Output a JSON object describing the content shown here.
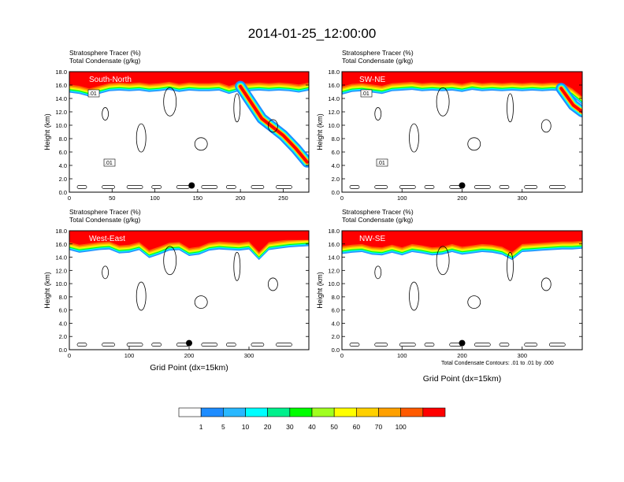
{
  "title": "2014-01-25_12:00:00",
  "footnote": "Total Condensate Contours: .01 to .01 by .000",
  "colorbar": {
    "labels": [
      "1",
      "5",
      "10",
      "20",
      "30",
      "40",
      "50",
      "60",
      "70",
      "100"
    ],
    "colors": [
      "#ffffff",
      "#1e8cff",
      "#29b8ff",
      "#00ffff",
      "#00f08c",
      "#00ff00",
      "#a0ff20",
      "#ffff00",
      "#ffd000",
      "#ffa000",
      "#ff5a00",
      "#ff0000"
    ]
  },
  "chart_data": [
    {
      "type": "heatmap",
      "panel": "top-left",
      "header": [
        "Stratosphere Tracer   (%)",
        "Total Condensate   (g/kg)"
      ],
      "label": "South-North",
      "xlabel": "",
      "ylabel": "Height (km)",
      "xlim": [
        0,
        280
      ],
      "ylim": [
        0,
        18
      ],
      "xticks": [
        "0",
        "50",
        "100",
        "150",
        "200",
        "250"
      ],
      "yticks": [
        "0.0",
        "2.0",
        "4.0",
        "6.0",
        "8.0",
        "10.0",
        "12.0",
        "14.0",
        "16.0",
        "18.0"
      ],
      "tracer_base_km": [
        14.8,
        14.6,
        14.2,
        14.6,
        15.0,
        15.1,
        15.0,
        15.1,
        14.9,
        15.0,
        15.2,
        14.9,
        15.1,
        15.0,
        15.0,
        15.1,
        14.6,
        15.0,
        15.0,
        15.1,
        15.0,
        15.1,
        15.0,
        14.8,
        15.1
      ],
      "intrusion": {
        "x": [
          200,
          225,
          250,
          265,
          278
        ],
        "y": [
          15.8,
          11.0,
          8.5,
          6.5,
          4.5
        ]
      },
      "contour_labels": [
        ".01",
        ".01"
      ],
      "marker": {
        "x": 143,
        "y": 1.0
      }
    },
    {
      "type": "heatmap",
      "panel": "top-right",
      "header": [
        "Stratosphere Tracer   (%)",
        "Total Condensate   (g/kg)"
      ],
      "label": "SW-NE",
      "xlabel": "",
      "ylabel": "Height (km)",
      "xlim": [
        0,
        400
      ],
      "ylim": [
        0,
        18
      ],
      "xticks": [
        "0",
        "100",
        "200",
        "300"
      ],
      "yticks": [
        "0.0",
        "2.0",
        "4.0",
        "6.0",
        "8.0",
        "10.0",
        "12.0",
        "14.0",
        "16.0",
        "18.0"
      ],
      "tracer_base_km": [
        14.5,
        14.9,
        15.0,
        14.8,
        14.6,
        15.0,
        15.1,
        15.2,
        15.0,
        15.1,
        15.0,
        15.1,
        14.9,
        15.2,
        15.0,
        15.1,
        15.0,
        15.1,
        15.0,
        15.1,
        15.0,
        15.1,
        15.0,
        14.2,
        13.0
      ],
      "intrusion": {
        "x": [
          365,
          385,
          400
        ],
        "y": [
          15.5,
          13.0,
          12.0
        ]
      },
      "contour_labels": [
        ".01",
        ".01"
      ],
      "marker": {
        "x": 200,
        "y": 1.0
      }
    },
    {
      "type": "heatmap",
      "panel": "bottom-left",
      "header": [
        "Stratosphere Tracer   (%)",
        "Total Condensate   (g/kg)"
      ],
      "label": "West-East",
      "xlabel": "Grid Point (dx=15km)",
      "ylabel": "Height (km)",
      "xlim": [
        0,
        400
      ],
      "ylim": [
        0,
        18
      ],
      "xticks": [
        "0",
        "100",
        "200",
        "300"
      ],
      "yticks": [
        "0.0",
        "2.0",
        "4.0",
        "6.0",
        "8.0",
        "10.0",
        "12.0",
        "14.0",
        "16.0",
        "18.0"
      ],
      "tracer_base_km": [
        15.0,
        14.6,
        14.8,
        15.0,
        15.1,
        14.5,
        14.6,
        15.0,
        13.8,
        14.3,
        14.9,
        15.0,
        14.1,
        14.3,
        14.9,
        15.1,
        15.0,
        14.9,
        15.1,
        13.5,
        15.0,
        15.2,
        15.4,
        15.5,
        15.6
      ],
      "contour_labels": [],
      "marker": {
        "x": 200,
        "y": 1.0
      }
    },
    {
      "type": "heatmap",
      "panel": "bottom-right",
      "header": [
        "Stratosphere Tracer   (%)",
        "Total Condensate   (g/kg)"
      ],
      "label": "NW-SE",
      "xlabel": "Grid Point (dx=15km)",
      "ylabel": "Height (km)",
      "xlim": [
        0,
        400
      ],
      "ylim": [
        0,
        18
      ],
      "xticks": [
        "0",
        "100",
        "200",
        "300"
      ],
      "yticks": [
        "0.0",
        "2.0",
        "4.0",
        "6.0",
        "8.0",
        "10.0",
        "12.0",
        "14.0",
        "16.0",
        "18.0"
      ],
      "tracer_base_km": [
        14.4,
        14.6,
        14.7,
        14.3,
        14.2,
        14.6,
        14.2,
        14.7,
        14.5,
        14.2,
        14.3,
        14.7,
        14.3,
        14.5,
        14.7,
        14.6,
        14.3,
        13.5,
        14.7,
        14.8,
        14.9,
        15.0,
        15.1,
        15.1,
        15.2
      ],
      "contour_labels": [],
      "marker": {
        "x": 200,
        "y": 1.0
      }
    }
  ]
}
